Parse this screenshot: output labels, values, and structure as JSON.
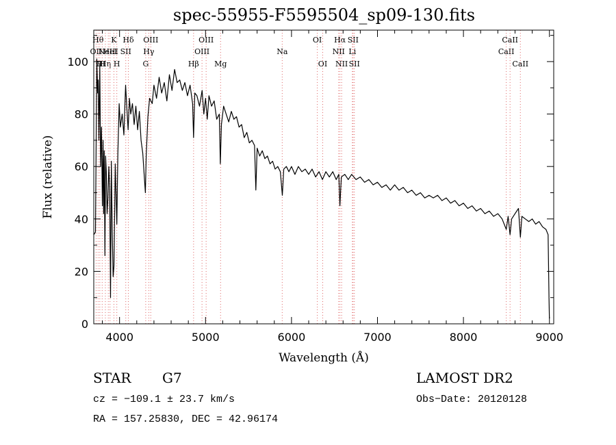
{
  "chart_data": {
    "type": "line",
    "title": "spec-55955-F5595504_sp09-130.fits",
    "xlabel": "Wavelength (Å)",
    "ylabel": "Flux (relative)",
    "xlim": [
      3700,
      9050
    ],
    "ylim": [
      0,
      112
    ],
    "xticks": [
      4000,
      5000,
      6000,
      7000,
      8000,
      9000
    ],
    "yticks": [
      0,
      20,
      40,
      60,
      80,
      100
    ],
    "grid": false,
    "line_color": "#000000",
    "marker_color": "#e06666",
    "series": [
      {
        "values": [
          [
            3700,
            34
          ],
          [
            3720,
            35
          ],
          [
            3735,
            101
          ],
          [
            3745,
            88
          ],
          [
            3752,
            93
          ],
          [
            3760,
            70
          ],
          [
            3770,
            99
          ],
          [
            3780,
            60
          ],
          [
            3790,
            75
          ],
          [
            3800,
            45
          ],
          [
            3808,
            70
          ],
          [
            3815,
            42
          ],
          [
            3822,
            66
          ],
          [
            3830,
            26
          ],
          [
            3838,
            64
          ],
          [
            3846,
            58
          ],
          [
            3855,
            42
          ],
          [
            3865,
            48
          ],
          [
            3875,
            60
          ],
          [
            3885,
            52
          ],
          [
            3895,
            10
          ],
          [
            3905,
            62
          ],
          [
            3915,
            35
          ],
          [
            3925,
            18
          ],
          [
            3935,
            22
          ],
          [
            3950,
            61
          ],
          [
            3968,
            38
          ],
          [
            3980,
            65
          ],
          [
            3995,
            84
          ],
          [
            4010,
            75
          ],
          [
            4030,
            80
          ],
          [
            4050,
            72
          ],
          [
            4070,
            91
          ],
          [
            4085,
            82
          ],
          [
            4100,
            74
          ],
          [
            4115,
            86
          ],
          [
            4130,
            80
          ],
          [
            4150,
            84
          ],
          [
            4170,
            76
          ],
          [
            4190,
            83
          ],
          [
            4210,
            74
          ],
          [
            4230,
            81
          ],
          [
            4250,
            70
          ],
          [
            4270,
            65
          ],
          [
            4290,
            55
          ],
          [
            4300,
            50
          ],
          [
            4310,
            64
          ],
          [
            4330,
            79
          ],
          [
            4350,
            86
          ],
          [
            4380,
            84
          ],
          [
            4400,
            91
          ],
          [
            4430,
            86
          ],
          [
            4460,
            94
          ],
          [
            4490,
            88
          ],
          [
            4520,
            92
          ],
          [
            4550,
            85
          ],
          [
            4580,
            95
          ],
          [
            4610,
            89
          ],
          [
            4640,
            97
          ],
          [
            4670,
            92
          ],
          [
            4700,
            93
          ],
          [
            4730,
            89
          ],
          [
            4760,
            92
          ],
          [
            4790,
            87
          ],
          [
            4820,
            91
          ],
          [
            4850,
            84
          ],
          [
            4861,
            71
          ],
          [
            4875,
            88
          ],
          [
            4900,
            87
          ],
          [
            4930,
            83
          ],
          [
            4960,
            89
          ],
          [
            4980,
            80
          ],
          [
            5000,
            86
          ],
          [
            5020,
            78
          ],
          [
            5040,
            87
          ],
          [
            5070,
            83
          ],
          [
            5100,
            85
          ],
          [
            5130,
            78
          ],
          [
            5160,
            80
          ],
          [
            5172,
            61
          ],
          [
            5185,
            76
          ],
          [
            5210,
            83
          ],
          [
            5240,
            80
          ],
          [
            5270,
            77
          ],
          [
            5300,
            81
          ],
          [
            5330,
            78
          ],
          [
            5360,
            79
          ],
          [
            5390,
            75
          ],
          [
            5420,
            76
          ],
          [
            5450,
            71
          ],
          [
            5480,
            73
          ],
          [
            5510,
            69
          ],
          [
            5540,
            70
          ],
          [
            5570,
            68
          ],
          [
            5585,
            51
          ],
          [
            5600,
            67
          ],
          [
            5630,
            64
          ],
          [
            5660,
            66
          ],
          [
            5690,
            63
          ],
          [
            5720,
            64
          ],
          [
            5750,
            61
          ],
          [
            5780,
            62
          ],
          [
            5810,
            59
          ],
          [
            5840,
            60
          ],
          [
            5870,
            58
          ],
          [
            5893,
            49
          ],
          [
            5910,
            59
          ],
          [
            5940,
            60
          ],
          [
            5970,
            58
          ],
          [
            6000,
            60
          ],
          [
            6040,
            57
          ],
          [
            6080,
            60
          ],
          [
            6120,
            58
          ],
          [
            6160,
            59
          ],
          [
            6200,
            57
          ],
          [
            6240,
            59
          ],
          [
            6280,
            56
          ],
          [
            6320,
            58
          ],
          [
            6360,
            55
          ],
          [
            6400,
            58
          ],
          [
            6440,
            56
          ],
          [
            6480,
            58
          ],
          [
            6520,
            55
          ],
          [
            6550,
            57
          ],
          [
            6563,
            45
          ],
          [
            6580,
            56
          ],
          [
            6620,
            57
          ],
          [
            6660,
            55
          ],
          [
            6700,
            57
          ],
          [
            6750,
            55
          ],
          [
            6800,
            56
          ],
          [
            6850,
            54
          ],
          [
            6900,
            55
          ],
          [
            6950,
            53
          ],
          [
            7000,
            54
          ],
          [
            7050,
            52
          ],
          [
            7100,
            53
          ],
          [
            7150,
            51
          ],
          [
            7200,
            53
          ],
          [
            7250,
            51
          ],
          [
            7300,
            52
          ],
          [
            7350,
            50
          ],
          [
            7400,
            51
          ],
          [
            7450,
            49
          ],
          [
            7500,
            50
          ],
          [
            7550,
            48
          ],
          [
            7600,
            49
          ],
          [
            7650,
            48
          ],
          [
            7700,
            49
          ],
          [
            7750,
            47
          ],
          [
            7800,
            48
          ],
          [
            7850,
            46
          ],
          [
            7900,
            47
          ],
          [
            7950,
            45
          ],
          [
            8000,
            46
          ],
          [
            8050,
            44
          ],
          [
            8100,
            45
          ],
          [
            8150,
            43
          ],
          [
            8200,
            44
          ],
          [
            8250,
            42
          ],
          [
            8300,
            43
          ],
          [
            8350,
            41
          ],
          [
            8400,
            42
          ],
          [
            8450,
            40
          ],
          [
            8498,
            36
          ],
          [
            8520,
            41
          ],
          [
            8542,
            34
          ],
          [
            8560,
            40
          ],
          [
            8600,
            42
          ],
          [
            8640,
            44
          ],
          [
            8662,
            33
          ],
          [
            8680,
            41
          ],
          [
            8720,
            40
          ],
          [
            8760,
            39
          ],
          [
            8800,
            40
          ],
          [
            8840,
            38
          ],
          [
            8880,
            39
          ],
          [
            8920,
            37
          ],
          [
            8960,
            36
          ],
          [
            8985,
            34
          ],
          [
            8995,
            10
          ],
          [
            9000,
            2
          ]
        ]
      }
    ],
    "line_markers": [
      {
        "wl": 3727,
        "label": "OII",
        "row": 1
      },
      {
        "wl": 3750,
        "label": "Hθ",
        "row": 0
      },
      {
        "wl": 3770,
        "label": "H",
        "row": 2
      },
      {
        "wl": 3798,
        "label": "H",
        "row": 2
      },
      {
        "wl": 3835,
        "label": "Hη",
        "row": 2
      },
      {
        "wl": 3869,
        "label": "NeIII",
        "row": 1
      },
      {
        "wl": 3889,
        "label": "HeI",
        "row": 1
      },
      {
        "wl": 3934,
        "label": "K",
        "row": 0
      },
      {
        "wl": 3968,
        "label": "H",
        "row": 2
      },
      {
        "wl": 4072,
        "label": "SII",
        "row": 1
      },
      {
        "wl": 4102,
        "label": "Hδ",
        "row": 0
      },
      {
        "wl": 4304,
        "label": "G",
        "row": 2
      },
      {
        "wl": 4340,
        "label": "Hγ",
        "row": 1
      },
      {
        "wl": 4363,
        "label": "OIII",
        "row": 0
      },
      {
        "wl": 4861,
        "label": "Hβ",
        "row": 2
      },
      {
        "wl": 4959,
        "label": "OIII",
        "row": 1
      },
      {
        "wl": 5007,
        "label": "OIII",
        "row": 0
      },
      {
        "wl": 5175,
        "label": "Mg",
        "row": 2
      },
      {
        "wl": 5892,
        "label": "Na",
        "row": 1
      },
      {
        "wl": 6300,
        "label": "OI",
        "row": 0
      },
      {
        "wl": 6363,
        "label": "OI",
        "row": 2
      },
      {
        "wl": 6548,
        "label": "NII",
        "row": 1
      },
      {
        "wl": 6563,
        "label": "Hα",
        "row": 0
      },
      {
        "wl": 6583,
        "label": "NII",
        "row": 2
      },
      {
        "wl": 6708,
        "label": "Li",
        "row": 1
      },
      {
        "wl": 6716,
        "label": "SII",
        "row": 0
      },
      {
        "wl": 6731,
        "label": "SII",
        "row": 2
      },
      {
        "wl": 8498,
        "label": "CaII",
        "row": 1
      },
      {
        "wl": 8542,
        "label": "CaII",
        "row": 0
      },
      {
        "wl": 8662,
        "label": "CaII",
        "row": 2
      }
    ]
  },
  "info": {
    "class_label": "STAR",
    "subclass": "G7",
    "survey": "LAMOST DR2",
    "cz": "cz = −109.1 ± 23.7 km/s",
    "obs_date": "Obs−Date: 20120128",
    "radec": "RA = 157.25830, DEC =  42.96174"
  }
}
